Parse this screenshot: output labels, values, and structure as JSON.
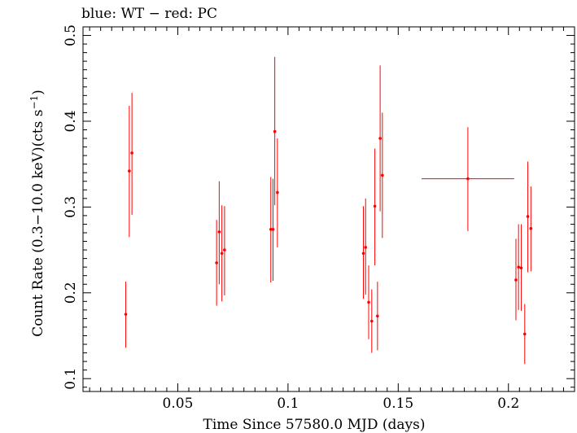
{
  "chart_data": {
    "type": "scatter",
    "title": "blue: WT − red: PC",
    "xlabel": "Time Since 57580.0 MJD (days)",
    "ylabel_main": "Count Rate (0.3−10.0 keV)(cts s",
    "ylabel_sup": "−1",
    "ylabel_close": ")",
    "xlim": [
      0.007,
      0.23
    ],
    "ylim": [
      0.085,
      0.51
    ],
    "x_ticks": [
      0.05,
      0.1,
      0.15,
      0.2
    ],
    "x_tick_labels": [
      "0.05",
      "0.1",
      "0.15",
      "0.2"
    ],
    "y_ticks": [
      0.1,
      0.2,
      0.3,
      0.4,
      0.5
    ],
    "y_tick_labels": [
      "0.1",
      "0.2",
      "0.3",
      "0.4",
      "0.5"
    ],
    "series_color": "#ff0000",
    "points": [
      {
        "x": 0.0264,
        "y": 0.175,
        "xerr": 0.0,
        "ylo": 0.136,
        "yhi": 0.213
      },
      {
        "x": 0.028,
        "y": 0.342,
        "xerr": 0.0,
        "ylo": 0.265,
        "yhi": 0.418
      },
      {
        "x": 0.0292,
        "y": 0.363,
        "xerr": 0.0,
        "ylo": 0.291,
        "yhi": 0.433
      },
      {
        "x": 0.0676,
        "y": 0.235,
        "xerr": 0.0,
        "ylo": 0.185,
        "yhi": 0.285
      },
      {
        "x": 0.0688,
        "y": 0.271,
        "xerr": 0.0,
        "ylo": 0.21,
        "yhi": 0.33
      },
      {
        "x": 0.07,
        "y": 0.246,
        "xerr": 0.0,
        "ylo": 0.19,
        "yhi": 0.302
      },
      {
        "x": 0.0712,
        "y": 0.25,
        "xerr": 0.0,
        "ylo": 0.197,
        "yhi": 0.301
      },
      {
        "x": 0.0922,
        "y": 0.274,
        "xerr": 0.0,
        "ylo": 0.212,
        "yhi": 0.335
      },
      {
        "x": 0.0932,
        "y": 0.274,
        "xerr": 0.0,
        "ylo": 0.214,
        "yhi": 0.333
      },
      {
        "x": 0.094,
        "y": 0.388,
        "xerr": 0.0,
        "ylo": 0.302,
        "yhi": 0.475
      },
      {
        "x": 0.0952,
        "y": 0.317,
        "xerr": 0.0,
        "ylo": 0.253,
        "yhi": 0.38
      },
      {
        "x": 0.1342,
        "y": 0.246,
        "xerr": 0.0,
        "ylo": 0.193,
        "yhi": 0.301
      },
      {
        "x": 0.1352,
        "y": 0.253,
        "xerr": 0.0,
        "ylo": 0.198,
        "yhi": 0.31
      },
      {
        "x": 0.1366,
        "y": 0.189,
        "xerr": 0.0,
        "ylo": 0.146,
        "yhi": 0.232
      },
      {
        "x": 0.138,
        "y": 0.167,
        "xerr": 0.0,
        "ylo": 0.13,
        "yhi": 0.204
      },
      {
        "x": 0.1394,
        "y": 0.301,
        "xerr": 0.0,
        "ylo": 0.232,
        "yhi": 0.368
      },
      {
        "x": 0.1406,
        "y": 0.173,
        "xerr": 0.0,
        "ylo": 0.133,
        "yhi": 0.213
      },
      {
        "x": 0.1418,
        "y": 0.38,
        "xerr": 0.0,
        "ylo": 0.295,
        "yhi": 0.465
      },
      {
        "x": 0.1428,
        "y": 0.337,
        "xerr": 0.0,
        "ylo": 0.264,
        "yhi": 0.41
      },
      {
        "x": 0.1816,
        "y": 0.333,
        "xerr": 0.021,
        "ylo": 0.272,
        "yhi": 0.393
      },
      {
        "x": 0.2034,
        "y": 0.215,
        "xerr": 0.0,
        "ylo": 0.168,
        "yhi": 0.263
      },
      {
        "x": 0.2046,
        "y": 0.23,
        "xerr": 0.0,
        "ylo": 0.18,
        "yhi": 0.28
      },
      {
        "x": 0.2058,
        "y": 0.229,
        "xerr": 0.0,
        "ylo": 0.179,
        "yhi": 0.28
      },
      {
        "x": 0.2074,
        "y": 0.152,
        "xerr": 0.0,
        "ylo": 0.117,
        "yhi": 0.187
      },
      {
        "x": 0.2088,
        "y": 0.289,
        "xerr": 0.0,
        "ylo": 0.224,
        "yhi": 0.353
      },
      {
        "x": 0.2102,
        "y": 0.275,
        "xerr": 0.0,
        "ylo": 0.225,
        "yhi": 0.324
      }
    ]
  }
}
